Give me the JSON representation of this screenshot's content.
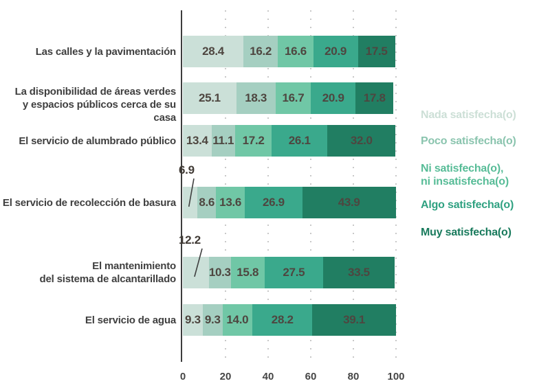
{
  "chart_data": {
    "type": "bar",
    "orientation": "horizontal",
    "stacked": true,
    "title": "",
    "xlabel": "",
    "ylabel": "",
    "xlim": [
      0,
      100
    ],
    "grid": "dotted-vertical",
    "x_ticks": [
      "0",
      "20",
      "40",
      "60",
      "80",
      "100"
    ],
    "series_colors": [
      "#cbe0d8",
      "#a5cfc1",
      "#70c7a6",
      "#3aa98c",
      "#217e62"
    ],
    "series_names": [
      "Nada satisfecha(o)",
      "Poco satisfecha(o)",
      "Ni satisfecha(o), ni insatisfecha(o)",
      "Algo satisfecha(o)",
      "Muy satisfecha(o)"
    ],
    "categories": [
      "Las calles y la pavimentación",
      "La disponibilidad de áreas verdes y espacios públicos cerca de su casa",
      "El servicio de alumbrado público",
      "El servicio de recolección de basura",
      "El mantenimiento del sistema de alcantarillado",
      "El servicio de agua"
    ],
    "rows": [
      {
        "label_lines": [
          "Las calles y la pavimentación"
        ],
        "values": [
          28.4,
          16.2,
          16.6,
          20.9,
          17.5
        ],
        "callout_first": false
      },
      {
        "label_lines": [
          "La disponibilidad de áreas verdes",
          "y espacios públicos cerca de su casa"
        ],
        "values": [
          25.1,
          18.3,
          16.7,
          20.9,
          17.8
        ],
        "callout_first": false
      },
      {
        "label_lines": [
          "El servicio de alumbrado público"
        ],
        "values": [
          13.4,
          11.1,
          17.2,
          26.1,
          32.0
        ],
        "callout_first": false
      },
      {
        "label_lines": [
          "El servicio de recolección de basura"
        ],
        "values": [
          6.9,
          8.6,
          13.6,
          26.9,
          43.9
        ],
        "callout_first": true
      },
      {
        "label_lines": [
          "El mantenimiento",
          "del sistema de alcantarillado"
        ],
        "values": [
          12.2,
          10.3,
          15.8,
          27.5,
          33.5
        ],
        "callout_first": true
      },
      {
        "label_lines": [
          "El servicio de agua"
        ],
        "values": [
          9.3,
          9.3,
          14.0,
          28.2,
          39.1
        ],
        "callout_first": false
      }
    ],
    "legend": {
      "position": "right",
      "items": [
        {
          "lines": [
            "Nada satisfecha(o)"
          ],
          "color": "#ccdfd6"
        },
        {
          "lines": [
            "Poco satisfecha(o)"
          ],
          "color": "#8ac4ae"
        },
        {
          "lines": [
            "Ni satisfecha(o),",
            "ni insatisfecha(o)"
          ],
          "color": "#57bc97"
        },
        {
          "lines": [
            "Algo satisfecha(o)"
          ],
          "color": "#2fa181"
        },
        {
          "lines": [
            "Muy satisfecha(o)"
          ],
          "color": "#187a5c"
        }
      ]
    },
    "colors": {
      "axis": "#3d3d3d",
      "grid": "#c8c8c8",
      "value_label": "#4e4640",
      "category_label": "#3f3f3f",
      "callout_line": "#3f3f3f",
      "background": "#ffffff"
    }
  }
}
